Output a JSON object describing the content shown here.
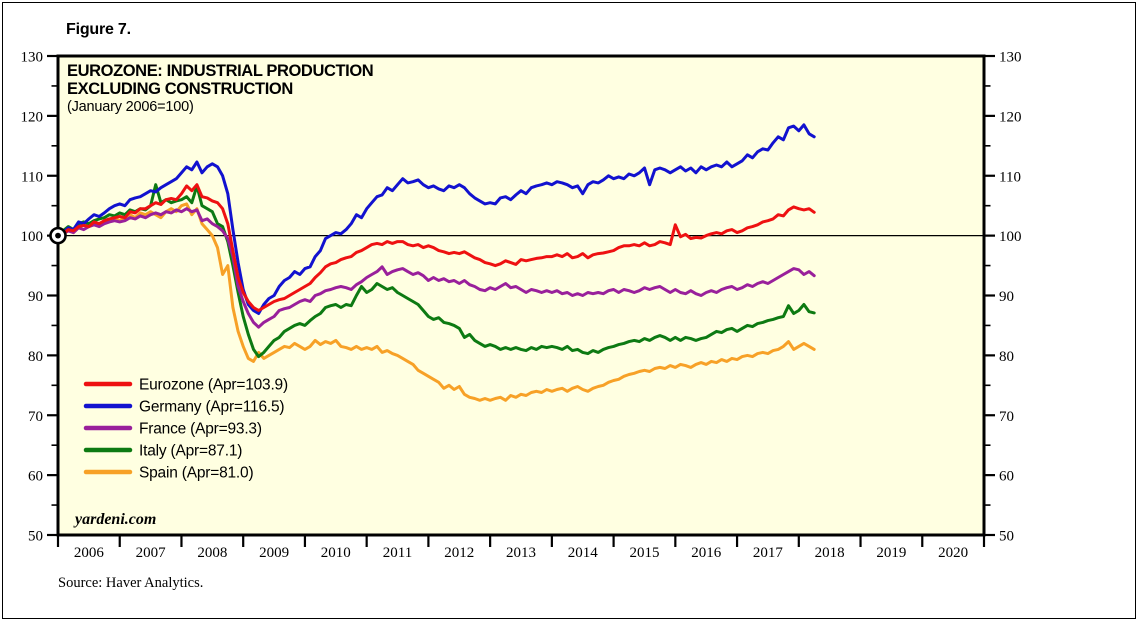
{
  "figure_label": "Figure 7.",
  "title_line1": "EUROZONE: INDUSTRIAL PRODUCTION",
  "title_line2": "EXCLUDING CONSTRUCTION",
  "subtitle": "(January 2006=100)",
  "watermark": "yardeni.com",
  "source": "Source: Haver Analytics.",
  "colors": {
    "background": "#ffffe1",
    "frame": "#000000",
    "reference_line": "#000000",
    "eurozone": "#ee1111",
    "germany": "#1212cf",
    "france": "#99209b",
    "italy": "#0d7a12",
    "spain": "#f7a127"
  },
  "chart_data": {
    "type": "line",
    "title": "EUROZONE: INDUSTRIAL PRODUCTION EXCLUDING CONSTRUCTION",
    "subtitle": "(January 2006=100)",
    "xlim": [
      2006,
      2021
    ],
    "ylim": [
      50,
      130
    ],
    "y_major_ticks": [
      50,
      60,
      70,
      80,
      90,
      100,
      110,
      120,
      130
    ],
    "y_minor_ticks": [
      55,
      65,
      75,
      85,
      95,
      105,
      115,
      125
    ],
    "x_tick_label_years": [
      2006,
      2007,
      2008,
      2009,
      2010,
      2011,
      2012,
      2013,
      2014,
      2015,
      2016,
      2017,
      2018,
      2019,
      2020
    ],
    "reference_line_y": 100,
    "origin_marker": {
      "x": 2006.0,
      "y": 100,
      "shape": "bullseye"
    },
    "grid": false,
    "legend_position": "inside-left",
    "x_start_month": "2006-01",
    "x_end_month": "2018-04",
    "x_step_months": 1,
    "series": [
      {
        "name": "Eurozone",
        "label": "Eurozone (Apr=103.9)",
        "color": "#ee1111",
        "last_value": 103.9,
        "values": [
          100.0,
          100.3,
          101.0,
          100.8,
          101.5,
          101.7,
          101.5,
          102.3,
          102.0,
          102.5,
          102.8,
          103.0,
          103.2,
          103.0,
          104.0,
          103.8,
          104.5,
          104.5,
          105.0,
          105.5,
          105.2,
          106.0,
          106.2,
          106.0,
          107.0,
          108.3,
          107.5,
          108.5,
          106.5,
          106.3,
          105.8,
          105.5,
          104.5,
          102.0,
          97.5,
          93.0,
          90.5,
          89.0,
          88.0,
          87.5,
          88.0,
          88.5,
          89.0,
          89.3,
          89.5,
          90.0,
          90.5,
          91.0,
          91.5,
          92.0,
          93.0,
          93.8,
          94.8,
          95.3,
          95.5,
          96.0,
          96.3,
          96.5,
          97.2,
          97.5,
          98.0,
          98.5,
          98.7,
          98.5,
          99.0,
          98.7,
          99.0,
          99.0,
          98.5,
          98.3,
          98.5,
          98.0,
          98.3,
          98.0,
          97.5,
          97.3,
          97.0,
          97.2,
          97.0,
          97.3,
          96.8,
          96.3,
          96.0,
          95.5,
          95.3,
          95.0,
          95.3,
          95.8,
          95.5,
          95.2,
          96.0,
          95.8,
          96.0,
          96.2,
          96.3,
          96.5,
          96.5,
          96.8,
          96.5,
          97.0,
          96.3,
          96.5,
          97.0,
          96.3,
          96.8,
          97.0,
          97.1,
          97.3,
          97.5,
          98.0,
          98.3,
          98.3,
          98.5,
          98.3,
          98.8,
          98.3,
          98.5,
          99.0,
          98.8,
          98.5,
          101.8,
          99.8,
          100.2,
          99.5,
          99.7,
          99.6,
          100.0,
          100.3,
          100.5,
          100.3,
          100.8,
          101.0,
          100.5,
          100.8,
          101.3,
          101.5,
          101.8,
          102.3,
          102.5,
          102.8,
          103.5,
          103.3,
          104.3,
          104.8,
          104.5,
          104.3,
          104.5,
          103.9
        ]
      },
      {
        "name": "Germany",
        "label": "Germany (Apr=116.5)",
        "color": "#1212cf",
        "last_value": 116.5,
        "values": [
          100.0,
          100.5,
          101.3,
          101.0,
          102.3,
          102.0,
          102.8,
          103.5,
          103.2,
          103.8,
          104.5,
          105.0,
          105.3,
          105.0,
          106.0,
          106.3,
          106.5,
          107.0,
          107.5,
          107.3,
          108.0,
          108.5,
          109.0,
          109.5,
          110.5,
          111.5,
          111.0,
          112.3,
          110.5,
          111.5,
          112.0,
          111.5,
          110.0,
          107.0,
          101.0,
          95.5,
          91.0,
          88.5,
          87.5,
          87.0,
          88.5,
          89.5,
          90.0,
          91.5,
          92.5,
          93.0,
          94.0,
          93.5,
          94.5,
          94.8,
          96.5,
          97.5,
          99.5,
          100.0,
          100.5,
          100.3,
          101.0,
          102.0,
          103.5,
          103.0,
          104.5,
          105.5,
          106.5,
          106.8,
          108.0,
          107.5,
          108.5,
          109.5,
          108.8,
          109.0,
          109.3,
          108.5,
          108.0,
          108.3,
          107.8,
          107.5,
          108.3,
          108.0,
          108.5,
          108.0,
          107.0,
          106.3,
          105.8,
          105.3,
          105.5,
          105.3,
          106.3,
          106.5,
          106.0,
          106.8,
          107.5,
          107.0,
          108.0,
          108.3,
          108.5,
          108.8,
          108.5,
          109.0,
          108.8,
          108.5,
          108.0,
          108.3,
          107.0,
          108.5,
          109.0,
          108.8,
          109.3,
          110.0,
          109.5,
          109.8,
          109.5,
          110.3,
          110.0,
          110.5,
          111.3,
          108.5,
          111.0,
          111.3,
          111.0,
          110.5,
          111.0,
          111.5,
          110.8,
          111.3,
          110.5,
          111.5,
          111.0,
          111.5,
          111.8,
          111.5,
          112.3,
          111.5,
          112.0,
          112.5,
          113.5,
          113.0,
          114.0,
          114.5,
          114.3,
          115.5,
          116.5,
          116.0,
          118.0,
          118.3,
          117.5,
          118.5,
          117.0,
          116.5
        ]
      },
      {
        "name": "France",
        "label": "France (Apr=93.3)",
        "color": "#99209b",
        "last_value": 93.3,
        "values": [
          100.0,
          100.3,
          100.8,
          100.5,
          101.3,
          101.0,
          101.5,
          101.8,
          101.5,
          102.0,
          102.3,
          102.5,
          102.3,
          102.5,
          103.0,
          102.8,
          103.3,
          103.0,
          103.5,
          103.8,
          103.5,
          104.0,
          103.8,
          104.3,
          104.0,
          104.5,
          104.0,
          104.3,
          102.5,
          102.8,
          102.0,
          101.5,
          100.8,
          99.5,
          96.5,
          91.5,
          89.0,
          87.0,
          85.5,
          84.7,
          85.5,
          86.0,
          86.5,
          87.5,
          87.8,
          88.0,
          88.5,
          89.0,
          89.3,
          89.0,
          90.0,
          90.3,
          90.8,
          91.0,
          91.3,
          91.5,
          91.3,
          91.0,
          91.8,
          92.3,
          93.0,
          93.5,
          94.0,
          94.8,
          93.5,
          94.0,
          94.3,
          94.5,
          94.0,
          93.5,
          93.8,
          93.3,
          92.5,
          93.0,
          92.5,
          92.8,
          92.3,
          92.5,
          92.0,
          92.5,
          91.8,
          91.5,
          91.0,
          90.8,
          91.3,
          91.0,
          91.5,
          92.0,
          91.3,
          91.5,
          91.0,
          90.5,
          91.0,
          90.8,
          90.5,
          90.8,
          90.5,
          90.8,
          90.3,
          90.5,
          90.0,
          90.3,
          90.0,
          90.5,
          90.3,
          90.5,
          90.3,
          90.8,
          91.0,
          90.5,
          91.0,
          90.8,
          90.5,
          90.8,
          91.3,
          91.0,
          91.3,
          91.5,
          91.0,
          90.5,
          91.0,
          90.5,
          90.3,
          90.8,
          90.3,
          90.0,
          90.5,
          90.8,
          90.5,
          91.0,
          91.3,
          91.5,
          91.0,
          91.3,
          91.8,
          91.5,
          92.0,
          92.3,
          92.0,
          92.5,
          93.0,
          93.5,
          94.0,
          94.5,
          94.3,
          93.5,
          94.0,
          93.3
        ]
      },
      {
        "name": "Italy",
        "label": "Italy (Apr=87.1)",
        "color": "#0d7a12",
        "last_value": 87.1,
        "values": [
          100.0,
          100.8,
          101.5,
          101.0,
          102.0,
          102.3,
          102.0,
          102.5,
          102.8,
          103.0,
          103.5,
          103.3,
          103.8,
          103.5,
          104.3,
          104.0,
          104.5,
          104.3,
          105.0,
          108.5,
          105.5,
          106.0,
          105.5,
          105.8,
          106.0,
          106.5,
          105.5,
          108.3,
          105.0,
          104.5,
          104.0,
          102.0,
          101.5,
          99.0,
          95.0,
          90.5,
          86.5,
          83.5,
          81.0,
          79.8,
          80.5,
          81.5,
          82.5,
          83.0,
          84.0,
          84.5,
          85.0,
          85.3,
          85.0,
          85.8,
          86.5,
          87.0,
          88.0,
          88.3,
          88.5,
          88.0,
          88.5,
          88.3,
          90.0,
          91.5,
          90.5,
          91.0,
          92.0,
          91.5,
          91.0,
          91.3,
          90.5,
          90.0,
          89.5,
          89.0,
          88.5,
          87.5,
          86.5,
          86.0,
          86.3,
          85.5,
          85.3,
          85.0,
          84.5,
          83.0,
          83.5,
          82.5,
          82.0,
          81.5,
          81.8,
          81.5,
          81.0,
          81.3,
          81.0,
          81.3,
          81.0,
          80.8,
          81.3,
          81.0,
          81.5,
          81.3,
          81.5,
          81.3,
          81.0,
          81.5,
          80.8,
          81.0,
          80.5,
          80.3,
          80.8,
          80.5,
          81.0,
          81.3,
          81.5,
          81.8,
          82.0,
          82.3,
          82.5,
          82.3,
          82.8,
          82.5,
          83.0,
          83.3,
          83.0,
          82.5,
          83.0,
          82.5,
          83.0,
          82.8,
          82.5,
          82.8,
          83.0,
          83.5,
          84.0,
          83.8,
          84.3,
          84.5,
          84.0,
          84.5,
          85.0,
          84.8,
          85.3,
          85.5,
          85.8,
          86.0,
          86.3,
          86.5,
          88.3,
          87.0,
          87.5,
          88.5,
          87.3,
          87.1
        ]
      },
      {
        "name": "Spain",
        "label": "Spain (Apr=81.0)",
        "color": "#f7a127",
        "last_value": 81.0,
        "values": [
          100.0,
          100.5,
          101.0,
          100.5,
          101.5,
          101.8,
          101.5,
          102.0,
          101.8,
          102.3,
          102.5,
          102.8,
          102.5,
          103.0,
          103.5,
          103.0,
          103.8,
          103.5,
          104.0,
          103.5,
          103.0,
          104.0,
          104.5,
          104.0,
          105.0,
          105.3,
          103.5,
          104.5,
          102.0,
          101.0,
          100.0,
          98.0,
          93.5,
          95.0,
          88.0,
          84.0,
          81.5,
          79.5,
          79.0,
          80.5,
          79.5,
          80.0,
          80.5,
          81.0,
          81.5,
          81.3,
          82.0,
          81.5,
          81.0,
          81.5,
          82.5,
          81.8,
          82.3,
          82.0,
          82.5,
          81.5,
          81.3,
          81.0,
          81.5,
          81.0,
          81.3,
          81.0,
          81.5,
          80.5,
          80.8,
          80.3,
          80.0,
          79.5,
          79.0,
          78.5,
          77.5,
          77.0,
          76.5,
          76.0,
          75.5,
          74.5,
          75.0,
          74.3,
          74.8,
          73.5,
          73.0,
          72.8,
          72.5,
          72.8,
          72.5,
          72.8,
          73.0,
          72.5,
          73.3,
          73.0,
          73.5,
          73.3,
          73.8,
          74.0,
          73.8,
          74.3,
          74.0,
          74.3,
          74.5,
          74.0,
          74.5,
          74.8,
          74.3,
          74.0,
          74.5,
          74.8,
          75.0,
          75.5,
          75.8,
          76.0,
          76.5,
          76.8,
          77.0,
          77.3,
          77.5,
          77.3,
          77.8,
          78.0,
          77.8,
          78.3,
          78.0,
          78.5,
          78.3,
          78.0,
          78.5,
          78.8,
          78.5,
          79.0,
          78.8,
          79.3,
          79.0,
          79.5,
          79.3,
          79.8,
          80.0,
          79.8,
          80.3,
          80.5,
          80.3,
          80.8,
          81.0,
          81.5,
          82.3,
          81.0,
          81.5,
          82.0,
          81.5,
          81.0
        ]
      }
    ]
  }
}
